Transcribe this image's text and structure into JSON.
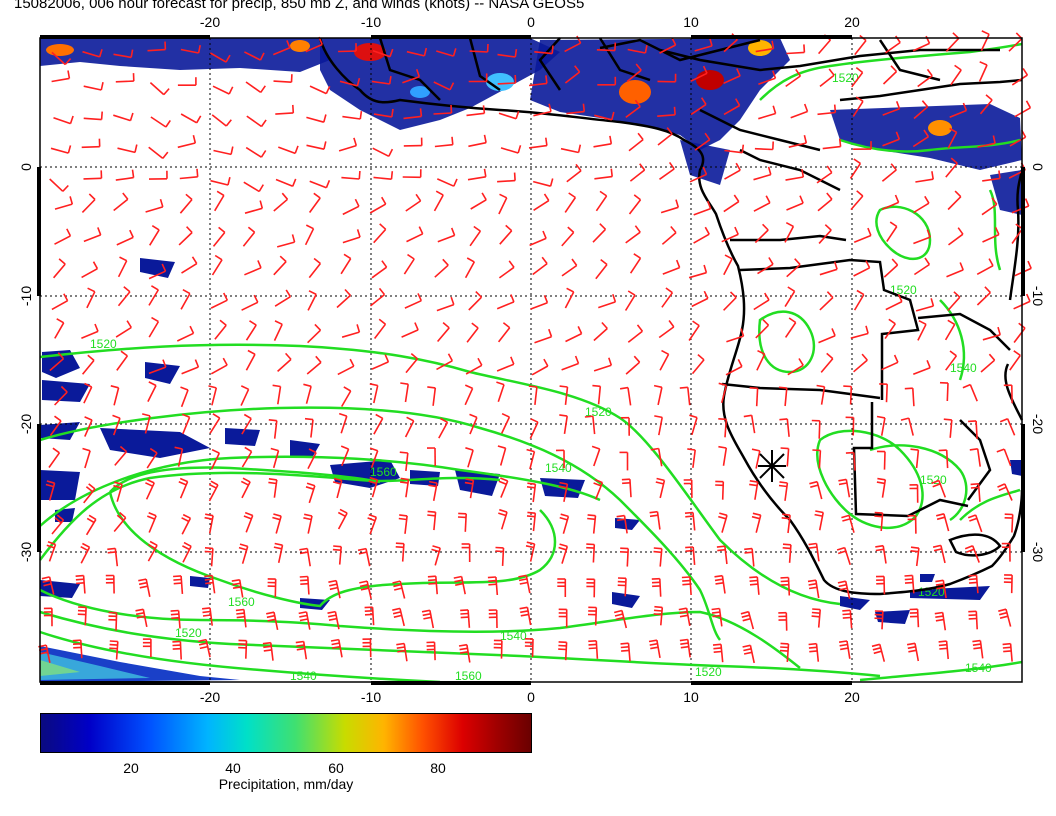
{
  "title": "15082006, 006 hour forecast for precip, 850 mb Z, and winds (knots) -- NASA GEOS5",
  "map": {
    "lon_range": [
      -30,
      30
    ],
    "lat_range": [
      -40,
      10
    ],
    "top_lon_ticks": [
      "-20",
      "-10",
      "0",
      "10",
      "20"
    ],
    "bottom_lon_ticks": [
      "-20",
      "-10",
      "0",
      "10",
      "20"
    ],
    "left_lat_ticks": [
      "0",
      "-10",
      "-20",
      "-30"
    ],
    "right_lat_ticks": [
      "0",
      "-10",
      "-20",
      "-30"
    ],
    "contour_labels": [
      "1520",
      "1520",
      "1520",
      "1520",
      "1540",
      "1560",
      "1560",
      "1540",
      "1520",
      "1540",
      "1520",
      "1520",
      "1540",
      "1520",
      "1540",
      "1560"
    ],
    "colors": {
      "wind_barbs": "#ff2020",
      "contours": "#22dd22",
      "coastline": "#000000",
      "grid": "#000000"
    },
    "marker_icon": "star-marker-icon"
  },
  "colorbar": {
    "ticks": [
      "20",
      "40",
      "60",
      "80"
    ],
    "label": "Precipitation, mm/day"
  }
}
